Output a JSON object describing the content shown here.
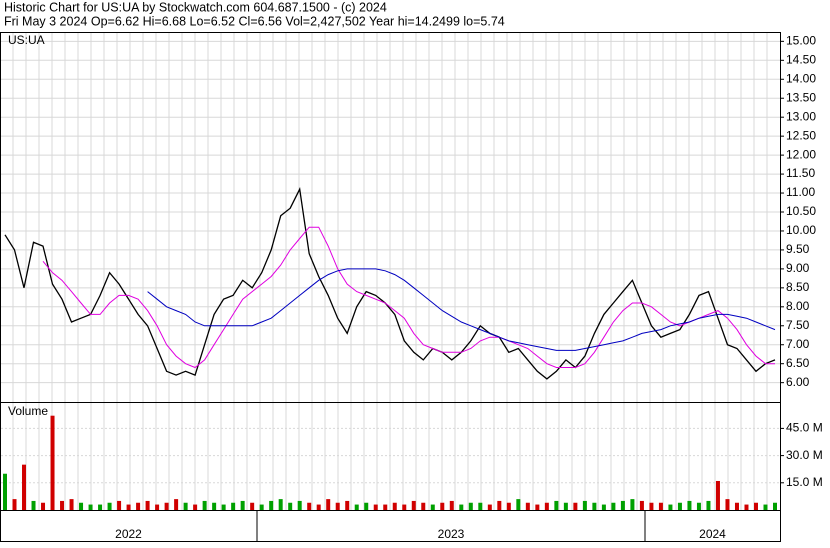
{
  "header": {
    "line1": "Historic Chart for US:UA by Stockwatch.com 604.687.1500 - (c) 2024",
    "line2": "Fri May  3 2024  Op=6.62  Hi=6.68  Lo=6.52  Cl=6.56  Vol=2,427,502  Year hi=14.2499  lo=5.74"
  },
  "chart_data": [
    {
      "type": "line",
      "legend": "US:UA",
      "periods": [
        "2022",
        "2023",
        "2024"
      ],
      "ylim": [
        5.49,
        15.22
      ],
      "grid": true,
      "yticks": [
        {
          "value": 6,
          "label": "6.00"
        },
        {
          "value": 6.5,
          "label": "6.50"
        },
        {
          "value": 7,
          "label": "7.00"
        },
        {
          "value": 7.5,
          "label": "7.50"
        },
        {
          "value": 8,
          "label": "8.00"
        },
        {
          "value": 8.5,
          "label": "8.50"
        },
        {
          "value": 9,
          "label": "9.00"
        },
        {
          "value": 9.5,
          "label": "9.50"
        },
        {
          "value": 10,
          "label": "10.00"
        },
        {
          "value": 10.5,
          "label": "10.50"
        },
        {
          "value": 11,
          "label": "11.00"
        },
        {
          "value": 11.5,
          "label": "11.50"
        },
        {
          "value": 12,
          "label": "12.00"
        },
        {
          "value": 12.5,
          "label": "12.50"
        },
        {
          "value": 13,
          "label": "13.00"
        },
        {
          "value": 13.5,
          "label": "13.50"
        },
        {
          "value": 14,
          "label": "14.00"
        },
        {
          "value": 14.5,
          "label": "14.50"
        },
        {
          "value": 15,
          "label": "15.00"
        }
      ],
      "series": [
        {
          "color": "#000000",
          "values": [
            9.9,
            9.5,
            8.5,
            9.7,
            9.6,
            8.6,
            8.2,
            7.6,
            7.7,
            7.8,
            8.3,
            8.9,
            8.6,
            8.2,
            7.8,
            7.5,
            6.9,
            6.3,
            6.2,
            6.3,
            6.2,
            7.0,
            7.8,
            8.2,
            8.3,
            8.7,
            8.5,
            8.9,
            9.5,
            10.4,
            10.6,
            11.1,
            9.4,
            8.8,
            8.3,
            7.7,
            7.3,
            8.0,
            8.4,
            8.3,
            8.1,
            7.8,
            7.1,
            6.8,
            6.6,
            6.9,
            6.8,
            6.6,
            6.8,
            7.1,
            7.5,
            7.3,
            7.2,
            6.8,
            6.9,
            6.6,
            6.3,
            6.1,
            6.3,
            6.6,
            6.4,
            6.7,
            7.3,
            7.8,
            8.1,
            8.4,
            8.7,
            8.1,
            7.5,
            7.2,
            7.3,
            7.4,
            7.8,
            8.3,
            8.4,
            7.7,
            7.0,
            6.9,
            6.6,
            6.3,
            6.5,
            6.6
          ]
        },
        {
          "color": "#e000e0",
          "values": [
            null,
            null,
            null,
            null,
            9.2,
            8.9,
            8.7,
            8.4,
            8.1,
            7.8,
            7.8,
            8.1,
            8.3,
            8.3,
            8.2,
            7.9,
            7.5,
            7.0,
            6.7,
            6.5,
            6.4,
            6.6,
            7.0,
            7.4,
            7.8,
            8.2,
            8.4,
            8.6,
            8.8,
            9.1,
            9.5,
            9.8,
            10.1,
            10.1,
            9.6,
            9.0,
            8.6,
            8.4,
            8.3,
            8.2,
            8.1,
            7.9,
            7.7,
            7.3,
            7.0,
            6.9,
            6.8,
            6.8,
            6.8,
            6.9,
            7.1,
            7.2,
            7.2,
            7.1,
            7.0,
            6.9,
            6.7,
            6.5,
            6.4,
            6.4,
            6.4,
            6.5,
            6.8,
            7.2,
            7.6,
            7.9,
            8.1,
            8.1,
            8.0,
            7.8,
            7.6,
            7.5,
            7.6,
            7.7,
            7.8,
            7.9,
            7.7,
            7.4,
            7.0,
            6.7,
            6.5,
            6.5
          ]
        },
        {
          "color": "#0000c0",
          "values": [
            null,
            null,
            null,
            null,
            null,
            null,
            null,
            null,
            null,
            null,
            null,
            null,
            null,
            null,
            null,
            8.4,
            8.2,
            8.0,
            7.9,
            7.8,
            7.6,
            7.5,
            7.5,
            7.5,
            7.5,
            7.5,
            7.5,
            7.6,
            7.7,
            7.9,
            8.1,
            8.3,
            8.5,
            8.7,
            8.85,
            8.95,
            9.0,
            9.0,
            9.0,
            9.0,
            8.95,
            8.85,
            8.7,
            8.5,
            8.3,
            8.1,
            7.9,
            7.75,
            7.6,
            7.5,
            7.4,
            7.3,
            7.2,
            7.1,
            7.05,
            7.0,
            6.95,
            6.9,
            6.85,
            6.85,
            6.85,
            6.9,
            6.95,
            7.0,
            7.05,
            7.1,
            7.2,
            7.3,
            7.35,
            7.4,
            7.5,
            7.55,
            7.6,
            7.7,
            7.75,
            7.8,
            7.8,
            7.75,
            7.7,
            7.6,
            7.5,
            7.4
          ]
        }
      ]
    },
    {
      "type": "bar",
      "legend": "Volume",
      "ylim": [
        0,
        59
      ],
      "up_color": "#00a000",
      "down_color": "#d00000",
      "yticks": [
        {
          "value": 15,
          "label": "15.0 M"
        },
        {
          "value": 30,
          "label": "30.0 M"
        },
        {
          "value": 45,
          "label": "45.0 M"
        }
      ],
      "values": [
        20,
        6,
        25,
        5,
        4,
        52,
        5,
        6,
        4,
        3,
        3,
        4,
        5,
        3,
        4,
        5,
        3,
        4,
        6,
        4,
        3,
        5,
        4,
        3,
        4,
        5,
        4,
        3,
        5,
        6,
        4,
        5,
        4,
        3,
        6,
        4,
        5,
        3,
        4,
        3,
        3,
        4,
        3,
        5,
        4,
        3,
        4,
        5,
        3,
        4,
        4,
        3,
        5,
        4,
        6,
        4,
        3,
        4,
        5,
        4,
        4,
        5,
        4,
        3,
        4,
        5,
        6,
        5,
        4,
        4,
        3,
        4,
        5,
        4,
        5,
        16,
        6,
        4,
        3,
        4,
        3,
        4
      ]
    }
  ]
}
